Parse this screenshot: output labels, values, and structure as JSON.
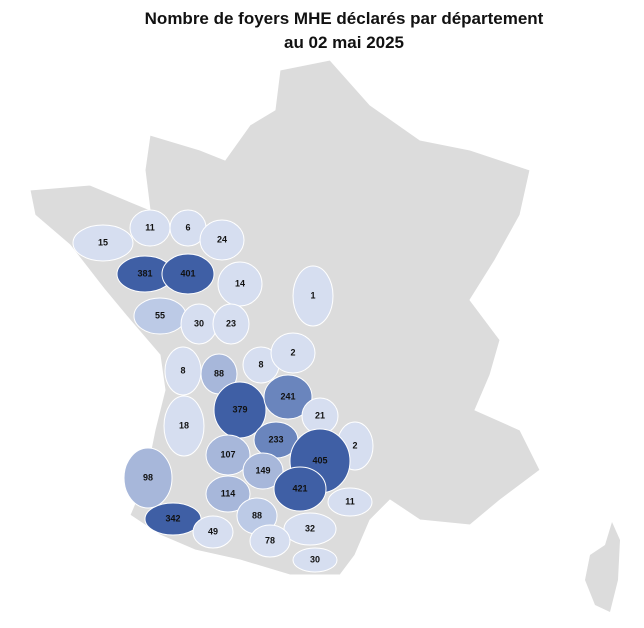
{
  "title_lines": [
    "Nombre de foyers MHE déclarés par département",
    "au 02 mai 2025"
  ],
  "departments": [
    {
      "value": 15,
      "color": "#d6def0"
    },
    {
      "value": 11,
      "color": "#d6def0"
    },
    {
      "value": 6,
      "color": "#d6def0"
    },
    {
      "value": 24,
      "color": "#d6def0"
    },
    {
      "value": 381,
      "color": "#3f5fa5"
    },
    {
      "value": 401,
      "color": "#3f5fa5"
    },
    {
      "value": 14,
      "color": "#d6def0"
    },
    {
      "value": 1,
      "color": "#d6def0"
    },
    {
      "value": 55,
      "color": "#bccae6"
    },
    {
      "value": 30,
      "color": "#d6def0"
    },
    {
      "value": 23,
      "color": "#d6def0"
    },
    {
      "value": 8,
      "color": "#d6def0"
    },
    {
      "value": 2,
      "color": "#d6def0"
    },
    {
      "value": 88,
      "color": "#a7b7da"
    },
    {
      "value": 8,
      "color": "#d6def0"
    },
    {
      "value": 379,
      "color": "#3f5fa5"
    },
    {
      "value": 241,
      "color": "#6a85bd"
    },
    {
      "value": 21,
      "color": "#d6def0"
    },
    {
      "value": 18,
      "color": "#d6def0"
    },
    {
      "value": 233,
      "color": "#6a85bd"
    },
    {
      "value": 2,
      "color": "#d6def0"
    },
    {
      "value": 107,
      "color": "#a7b7da"
    },
    {
      "value": 405,
      "color": "#3f5fa5"
    },
    {
      "value": 98,
      "color": "#a7b7da"
    },
    {
      "value": 149,
      "color": "#a7b7da"
    },
    {
      "value": 421,
      "color": "#3f5fa5"
    },
    {
      "value": 11,
      "color": "#d6def0"
    },
    {
      "value": 114,
      "color": "#a7b7da"
    },
    {
      "value": 342,
      "color": "#3f5fa5"
    },
    {
      "value": 88,
      "color": "#bccae6"
    },
    {
      "value": 49,
      "color": "#d6def0"
    },
    {
      "value": 32,
      "color": "#d6def0"
    },
    {
      "value": 78,
      "color": "#d6def0"
    },
    {
      "value": 30,
      "color": "#d6def0"
    }
  ]
}
